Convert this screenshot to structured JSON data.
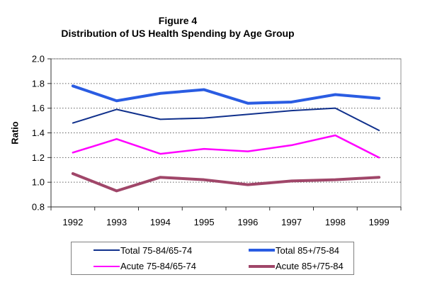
{
  "figure": {
    "title_line1": "Figure 4",
    "title_line2": "Distribution of US Health Spending by Age Group"
  },
  "chart_data": {
    "type": "line",
    "title": "Figure 4 - Distribution of US Health Spending by Age Group",
    "xlabel": "",
    "ylabel": "Ratio",
    "ylim": [
      0.8,
      2.0
    ],
    "ytick_step": 0.2,
    "grid": true,
    "legend_position": "bottom",
    "categories": [
      "1992",
      "1993",
      "1994",
      "1995",
      "1996",
      "1997",
      "1998",
      "1999"
    ],
    "series": [
      {
        "name": "Total 75-84/65-74",
        "color": "#10308C",
        "stroke_width": 2,
        "values": [
          1.48,
          1.59,
          1.51,
          1.52,
          1.55,
          1.58,
          1.6,
          1.42
        ]
      },
      {
        "name": "Total 85+/75-84",
        "color": "#2A5CE2",
        "stroke_width": 4,
        "values": [
          1.78,
          1.66,
          1.72,
          1.75,
          1.64,
          1.65,
          1.71,
          1.68
        ]
      },
      {
        "name": "Acute 75-84/65-74",
        "color": "#FF00FF",
        "stroke_width": 2.5,
        "values": [
          1.24,
          1.35,
          1.23,
          1.27,
          1.25,
          1.3,
          1.38,
          1.2
        ]
      },
      {
        "name": "Acute 85+/75-84",
        "color": "#A04669",
        "stroke_width": 4,
        "values": [
          1.07,
          0.93,
          1.04,
          1.02,
          0.98,
          1.01,
          1.02,
          1.04
        ]
      }
    ]
  }
}
